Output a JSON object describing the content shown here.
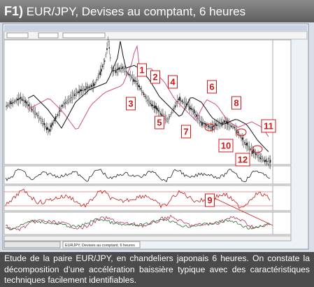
{
  "header": {
    "label": "F1)",
    "title": "EUR/JPY, Devises au comptant, 6 heures"
  },
  "chart": {
    "window_title": "EURJPY, Devises au comptant, 6 heures",
    "annotations": [
      "1",
      "2",
      "3",
      "4",
      "5",
      "6",
      "7",
      "8",
      "9",
      "10",
      "11",
      "12"
    ]
  },
  "caption": "Etude de la paire EUR/JPY, en chandeliers japonais 6 heures. On constate la décomposition d’une accélération baissière typique avec des caractéristiques techniques facilement identifiables."
}
